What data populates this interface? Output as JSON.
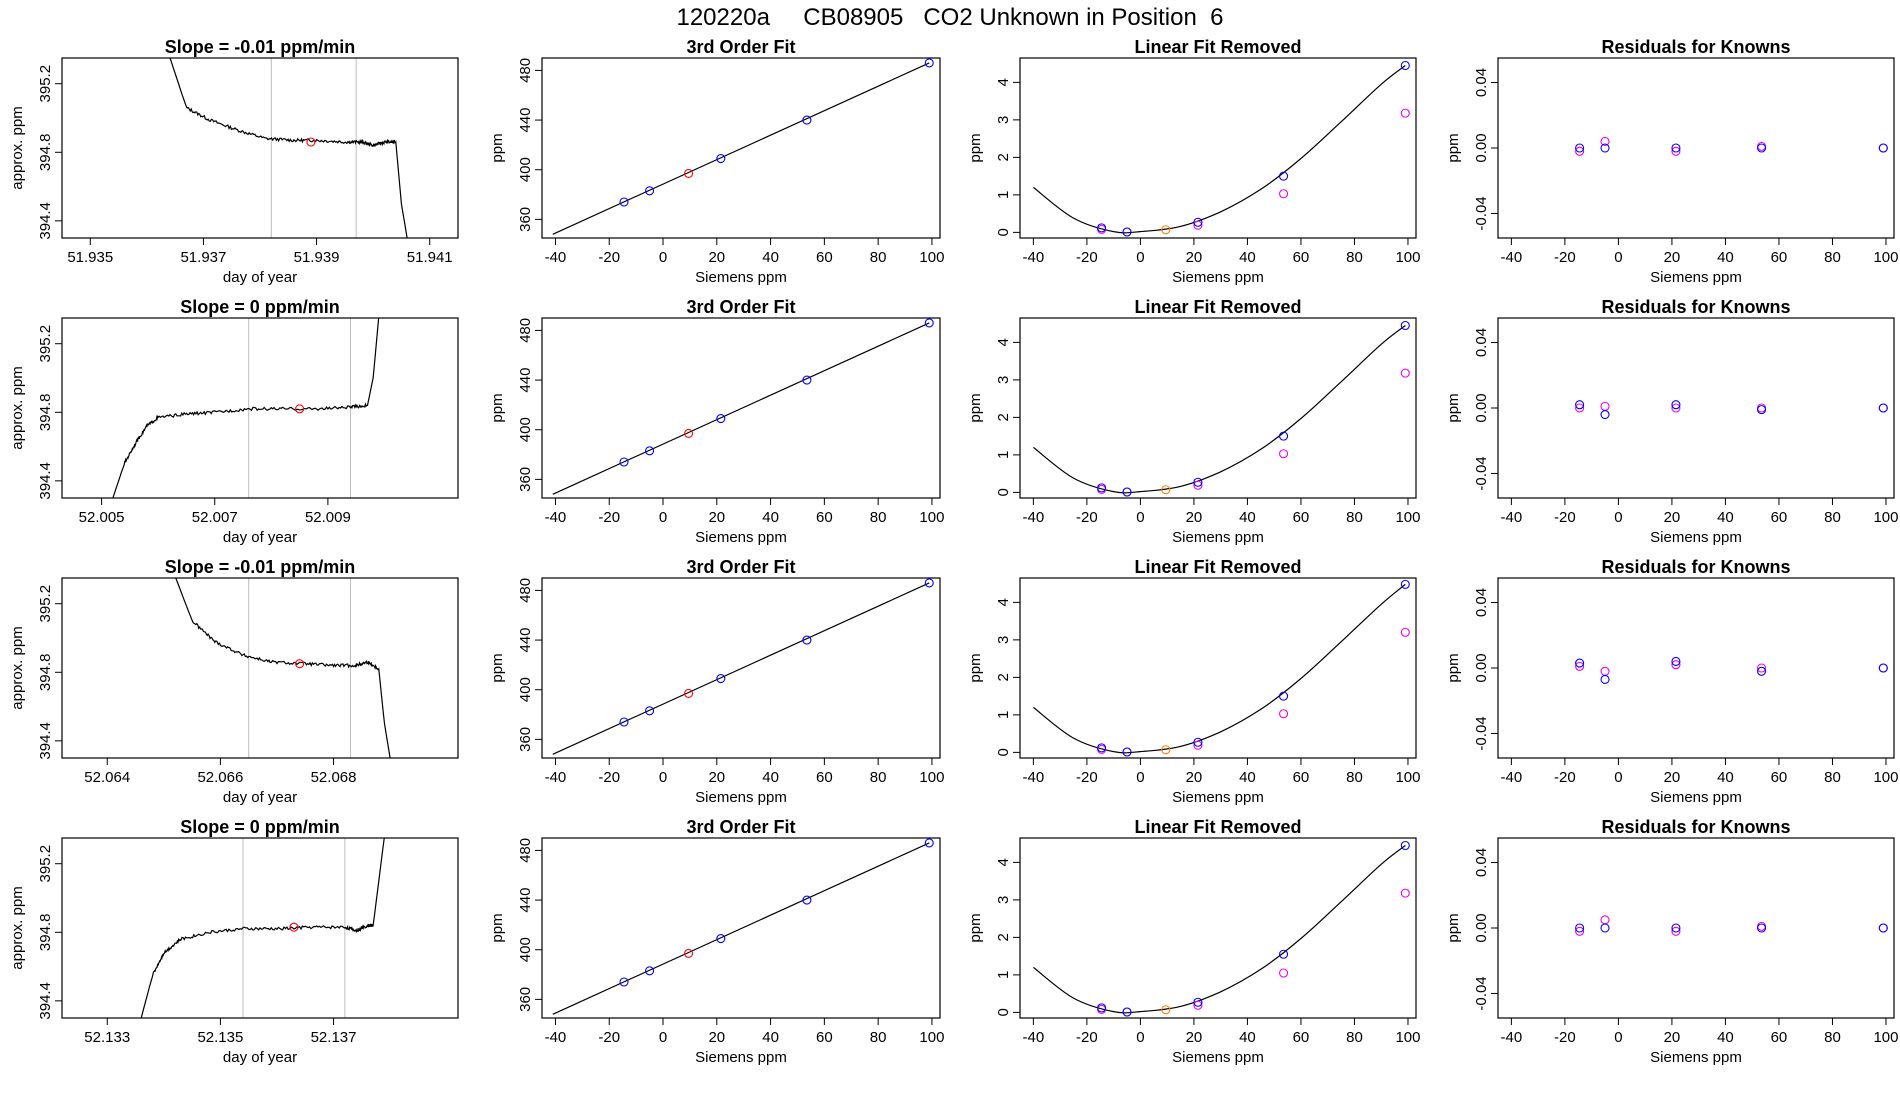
{
  "figure": {
    "title": "120220a     CB08905   CO2 Unknown in Position  6"
  },
  "colors": {
    "trace": "#000000",
    "unknown": "#ff0000",
    "known": "#0000ff",
    "unknown_resid": "#ff7f00",
    "raw_known": "#ee00ee",
    "grid": "#bebebe"
  },
  "chart_data": [
    {
      "type": "line",
      "title": "Slope =  -0.01  ppm/min",
      "xlabel": "day of year",
      "ylabel": "approx. ppm",
      "xlim": [
        51.9345,
        51.9415
      ],
      "ylim": [
        394.3,
        395.35
      ],
      "xticks": [
        "51.935",
        "51.937",
        "51.939",
        "51.941"
      ],
      "yticks": [
        "394.4",
        "394.8",
        "395.2"
      ],
      "vlines": [
        51.9382,
        51.9397
      ],
      "trace": [
        [
          51.9364,
          395.36
        ],
        [
          51.9367,
          395.06
        ],
        [
          51.9371,
          394.99
        ],
        [
          51.9376,
          394.93
        ],
        [
          51.9381,
          394.88
        ],
        [
          51.9386,
          394.87
        ],
        [
          51.939,
          394.87
        ],
        [
          51.9395,
          394.86
        ],
        [
          51.9398,
          394.86
        ],
        [
          51.94,
          394.84
        ],
        [
          51.9402,
          394.86
        ],
        [
          51.9404,
          394.86
        ],
        [
          51.9405,
          394.5
        ],
        [
          51.9406,
          394.3
        ]
      ],
      "unknown_point": [
        51.9389,
        394.86
      ]
    },
    {
      "type": "scatter",
      "title": "3rd Order Fit",
      "xlabel": "Siemens ppm",
      "ylabel": "ppm",
      "xlim": [
        -45,
        103
      ],
      "ylim": [
        345,
        490
      ],
      "xticks": [
        "-40",
        "-20",
        "0",
        "20",
        "40",
        "60",
        "80",
        "100"
      ],
      "yticks": [
        "360",
        "400",
        "440",
        "480"
      ],
      "fit_line": [
        [
          -41,
          348
        ],
        [
          99,
          486
        ]
      ],
      "knowns": [
        [
          -14.5,
          374
        ],
        [
          -5,
          383
        ],
        [
          21.5,
          409
        ],
        [
          53.5,
          440
        ],
        [
          99,
          486
        ]
      ],
      "unknown_point": [
        9.5,
        397
      ]
    },
    {
      "type": "scatter",
      "title": "Linear Fit Removed",
      "xlabel": "Siemens ppm",
      "ylabel": "ppm",
      "xlim": [
        -45,
        103
      ],
      "ylim": [
        -0.15,
        4.65
      ],
      "xticks": [
        "-40",
        "-20",
        "0",
        "20",
        "40",
        "60",
        "80",
        "100"
      ],
      "yticks": [
        "0",
        "1",
        "2",
        "3",
        "4"
      ],
      "curve_points": [
        -40,
        1.2,
        -25,
        0.38,
        -10,
        0.02,
        0,
        0.02,
        15,
        0.16,
        30,
        0.55,
        45,
        1.15,
        60,
        1.97,
        75,
        2.95,
        90,
        3.95,
        99,
        4.45
      ],
      "knowns": [
        [
          -14.5,
          0.12
        ],
        [
          -5,
          0.01
        ],
        [
          21.5,
          0.27
        ],
        [
          53.5,
          1.5
        ],
        [
          99,
          4.45
        ]
      ],
      "raw_knowns": [
        [
          -14.5,
          0.08
        ],
        [
          -5,
          0.01
        ],
        [
          21.5,
          0.19
        ],
        [
          53.5,
          1.03
        ],
        [
          99,
          3.18
        ]
      ],
      "unknown_point": [
        9.5,
        0.07
      ]
    },
    {
      "type": "scatter",
      "title": "Residuals for Knowns",
      "xlabel": "Siemens ppm",
      "ylabel": "ppm",
      "xlim": [
        -45,
        103
      ],
      "ylim": [
        -0.055,
        0.055
      ],
      "xticks": [
        "-40",
        "-20",
        "0",
        "20",
        "40",
        "60",
        "80",
        "100"
      ],
      "yticks": [
        "-0.04",
        "0.00",
        "0.04"
      ],
      "knowns": [
        [
          -14.5,
          0.0
        ],
        [
          -5,
          0.0
        ],
        [
          21.5,
          0.0
        ],
        [
          53.5,
          0.0
        ],
        [
          99,
          0.0
        ]
      ],
      "raw_knowns": [
        [
          -14.5,
          -0.002
        ],
        [
          -5,
          0.004
        ],
        [
          21.5,
          -0.002
        ],
        [
          53.5,
          0.001
        ],
        [
          99,
          0.0
        ]
      ]
    },
    {
      "type": "line",
      "title": "Slope =  0  ppm/min",
      "xlabel": "day of year",
      "ylabel": "approx. ppm",
      "xlim": [
        52.0043,
        52.0113
      ],
      "ylim": [
        394.3,
        395.35
      ],
      "xticks": [
        "52.005",
        "52.007",
        "52.009"
      ],
      "yticks": [
        "394.4",
        "394.8",
        "395.2"
      ],
      "vlines": [
        52.0076,
        52.0094
      ],
      "trace": [
        [
          52.0052,
          394.3
        ],
        [
          52.0054,
          394.5
        ],
        [
          52.0056,
          394.62
        ],
        [
          52.0058,
          394.72
        ],
        [
          52.006,
          394.77
        ],
        [
          52.0065,
          394.79
        ],
        [
          52.007,
          394.8
        ],
        [
          52.0076,
          394.82
        ],
        [
          52.0082,
          394.82
        ],
        [
          52.0088,
          394.82
        ],
        [
          52.0094,
          394.83
        ],
        [
          52.0097,
          394.84
        ],
        [
          52.0098,
          395.0
        ],
        [
          52.0099,
          395.36
        ]
      ],
      "unknown_point": [
        52.0085,
        394.82
      ]
    },
    {
      "type": "scatter",
      "title": "3rd Order Fit",
      "xlabel": "Siemens ppm",
      "ylabel": "ppm",
      "xlim": [
        -45,
        103
      ],
      "ylim": [
        345,
        490
      ],
      "xticks": [
        "-40",
        "-20",
        "0",
        "20",
        "40",
        "60",
        "80",
        "100"
      ],
      "yticks": [
        "360",
        "400",
        "440",
        "480"
      ],
      "fit_line": [
        [
          -41,
          348
        ],
        [
          99,
          486
        ]
      ],
      "knowns": [
        [
          -14.5,
          374
        ],
        [
          -5,
          383
        ],
        [
          21.5,
          409
        ],
        [
          53.5,
          440
        ],
        [
          99,
          486
        ]
      ],
      "unknown_point": [
        9.5,
        397
      ]
    },
    {
      "type": "scatter",
      "title": "Linear Fit Removed",
      "xlabel": "Siemens ppm",
      "ylabel": "ppm",
      "xlim": [
        -45,
        103
      ],
      "ylim": [
        -0.15,
        4.65
      ],
      "xticks": [
        "-40",
        "-20",
        "0",
        "20",
        "40",
        "60",
        "80",
        "100"
      ],
      "yticks": [
        "0",
        "1",
        "2",
        "3",
        "4"
      ],
      "curve_points": [
        -40,
        1.2,
        -25,
        0.38,
        -10,
        0.02,
        0,
        0.02,
        15,
        0.16,
        30,
        0.55,
        45,
        1.15,
        60,
        1.97,
        75,
        2.95,
        90,
        3.95,
        99,
        4.45
      ],
      "knowns": [
        [
          -14.5,
          0.12
        ],
        [
          -5,
          0.01
        ],
        [
          21.5,
          0.27
        ],
        [
          53.5,
          1.5
        ],
        [
          99,
          4.45
        ]
      ],
      "raw_knowns": [
        [
          -14.5,
          0.08
        ],
        [
          -5,
          0.01
        ],
        [
          21.5,
          0.19
        ],
        [
          53.5,
          1.03
        ],
        [
          99,
          3.18
        ]
      ],
      "unknown_point": [
        9.5,
        0.07
      ]
    },
    {
      "type": "scatter",
      "title": "Residuals for Knowns",
      "xlabel": "Siemens ppm",
      "ylabel": "ppm",
      "xlim": [
        -45,
        103
      ],
      "ylim": [
        -0.055,
        0.055
      ],
      "xticks": [
        "-40",
        "-20",
        "0",
        "20",
        "40",
        "60",
        "80",
        "100"
      ],
      "yticks": [
        "-0.04",
        "0.00",
        "0.04"
      ],
      "knowns": [
        [
          -14.5,
          0.002
        ],
        [
          -5,
          -0.004
        ],
        [
          21.5,
          0.002
        ],
        [
          53.5,
          -0.001
        ],
        [
          99,
          0.0
        ]
      ],
      "raw_knowns": [
        [
          -14.5,
          0.0
        ],
        [
          -5,
          0.001
        ],
        [
          21.5,
          0.0
        ],
        [
          53.5,
          0.0
        ],
        [
          99,
          0.0
        ]
      ]
    },
    {
      "type": "line",
      "title": "Slope =  -0.01  ppm/min",
      "xlabel": "day of year",
      "ylabel": "approx. ppm",
      "xlim": [
        52.0632,
        52.0702
      ],
      "ylim": [
        394.3,
        395.35
      ],
      "xticks": [
        "52.064",
        "52.066",
        "52.068"
      ],
      "yticks": [
        "394.4",
        "394.8",
        "395.2"
      ],
      "vlines": [
        52.0665,
        52.0683
      ],
      "trace": [
        [
          52.0652,
          395.36
        ],
        [
          52.0655,
          395.1
        ],
        [
          52.0659,
          394.98
        ],
        [
          52.0664,
          394.9
        ],
        [
          52.0669,
          394.86
        ],
        [
          52.0675,
          394.85
        ],
        [
          52.068,
          394.84
        ],
        [
          52.0684,
          394.84
        ],
        [
          52.0686,
          394.86
        ],
        [
          52.0688,
          394.82
        ],
        [
          52.0689,
          394.5
        ],
        [
          52.069,
          394.3
        ]
      ],
      "unknown_point": [
        52.0674,
        394.85
      ]
    },
    {
      "type": "scatter",
      "title": "3rd Order Fit",
      "xlabel": "Siemens ppm",
      "ylabel": "ppm",
      "xlim": [
        -45,
        103
      ],
      "ylim": [
        345,
        490
      ],
      "xticks": [
        "-40",
        "-20",
        "0",
        "20",
        "40",
        "60",
        "80",
        "100"
      ],
      "yticks": [
        "360",
        "400",
        "440",
        "480"
      ],
      "fit_line": [
        [
          -41,
          348
        ],
        [
          99,
          486
        ]
      ],
      "knowns": [
        [
          -14.5,
          374
        ],
        [
          -5,
          383
        ],
        [
          21.5,
          409
        ],
        [
          53.5,
          440
        ],
        [
          99,
          486
        ]
      ],
      "unknown_point": [
        9.5,
        397
      ]
    },
    {
      "type": "scatter",
      "title": "Linear Fit Removed",
      "xlabel": "Siemens ppm",
      "ylabel": "ppm",
      "xlim": [
        -45,
        103
      ],
      "ylim": [
        -0.15,
        4.65
      ],
      "xticks": [
        "-40",
        "-20",
        "0",
        "20",
        "40",
        "60",
        "80",
        "100"
      ],
      "yticks": [
        "0",
        "1",
        "2",
        "3",
        "4"
      ],
      "curve_points": [
        -40,
        1.2,
        -25,
        0.38,
        -10,
        0.02,
        0,
        0.02,
        15,
        0.16,
        30,
        0.55,
        45,
        1.15,
        60,
        1.97,
        75,
        2.95,
        90,
        3.95,
        99,
        4.48
      ],
      "knowns": [
        [
          -14.5,
          0.12
        ],
        [
          -5,
          0.01
        ],
        [
          21.5,
          0.27
        ],
        [
          53.5,
          1.5
        ],
        [
          99,
          4.48
        ]
      ],
      "raw_knowns": [
        [
          -14.5,
          0.08
        ],
        [
          -5,
          0.01
        ],
        [
          21.5,
          0.19
        ],
        [
          53.5,
          1.03
        ],
        [
          99,
          3.2
        ]
      ],
      "unknown_point": [
        9.5,
        0.07
      ]
    },
    {
      "type": "scatter",
      "title": "Residuals for Knowns",
      "xlabel": "Siemens ppm",
      "ylabel": "ppm",
      "xlim": [
        -45,
        103
      ],
      "ylim": [
        -0.055,
        0.055
      ],
      "xticks": [
        "-40",
        "-20",
        "0",
        "20",
        "40",
        "60",
        "80",
        "100"
      ],
      "yticks": [
        "-0.04",
        "0.00",
        "0.04"
      ],
      "knowns": [
        [
          -14.5,
          0.003
        ],
        [
          -5,
          -0.007
        ],
        [
          21.5,
          0.004
        ],
        [
          53.5,
          -0.002
        ],
        [
          99,
          0.0
        ]
      ],
      "raw_knowns": [
        [
          -14.5,
          0.001
        ],
        [
          -5,
          -0.002
        ],
        [
          21.5,
          0.002
        ],
        [
          53.5,
          0.0
        ],
        [
          99,
          0.0
        ]
      ]
    },
    {
      "type": "line",
      "title": "Slope =  0  ppm/min",
      "xlabel": "day of year",
      "ylabel": "approx. ppm",
      "xlim": [
        52.1322,
        52.1392
      ],
      "ylim": [
        394.3,
        395.35
      ],
      "xticks": [
        "52.133",
        "52.135",
        "52.137"
      ],
      "yticks": [
        "394.4",
        "394.8",
        "395.2"
      ],
      "vlines": [
        52.1354,
        52.1372
      ],
      "trace": [
        [
          52.1336,
          394.3
        ],
        [
          52.1338,
          394.55
        ],
        [
          52.134,
          394.68
        ],
        [
          52.1343,
          394.76
        ],
        [
          52.1348,
          394.8
        ],
        [
          52.1354,
          394.82
        ],
        [
          52.136,
          394.82
        ],
        [
          52.1366,
          394.83
        ],
        [
          52.1372,
          394.83
        ],
        [
          52.1374,
          394.81
        ],
        [
          52.1376,
          394.84
        ],
        [
          52.1377,
          394.84
        ],
        [
          52.1378,
          395.1
        ],
        [
          52.1379,
          395.36
        ]
      ],
      "unknown_point": [
        52.1363,
        394.83
      ]
    },
    {
      "type": "scatter",
      "title": "3rd Order Fit",
      "xlabel": "Siemens ppm",
      "ylabel": "ppm",
      "xlim": [
        -45,
        103
      ],
      "ylim": [
        345,
        490
      ],
      "xticks": [
        "-40",
        "-20",
        "0",
        "20",
        "40",
        "60",
        "80",
        "100"
      ],
      "yticks": [
        "360",
        "400",
        "440",
        "480"
      ],
      "fit_line": [
        [
          -41,
          348
        ],
        [
          99,
          486
        ]
      ],
      "knowns": [
        [
          -14.5,
          374
        ],
        [
          -5,
          383
        ],
        [
          21.5,
          409
        ],
        [
          53.5,
          440
        ],
        [
          99,
          486
        ]
      ],
      "unknown_point": [
        9.5,
        397
      ]
    },
    {
      "type": "scatter",
      "title": "Linear Fit Removed",
      "xlabel": "Siemens ppm",
      "ylabel": "ppm",
      "xlim": [
        -45,
        103
      ],
      "ylim": [
        -0.15,
        4.65
      ],
      "xticks": [
        "-40",
        "-20",
        "0",
        "20",
        "40",
        "60",
        "80",
        "100"
      ],
      "yticks": [
        "0",
        "1",
        "2",
        "3",
        "4"
      ],
      "curve_points": [
        -40,
        1.2,
        -25,
        0.38,
        -10,
        0.02,
        0,
        0.02,
        15,
        0.16,
        30,
        0.55,
        45,
        1.15,
        60,
        1.97,
        75,
        2.95,
        90,
        3.95,
        99,
        4.45
      ],
      "knowns": [
        [
          -14.5,
          0.12
        ],
        [
          -5,
          0.01
        ],
        [
          21.5,
          0.27
        ],
        [
          53.5,
          1.55
        ],
        [
          99,
          4.45
        ]
      ],
      "raw_knowns": [
        [
          -14.5,
          0.08
        ],
        [
          -5,
          0.01
        ],
        [
          21.5,
          0.19
        ],
        [
          53.5,
          1.05
        ],
        [
          99,
          3.18
        ]
      ],
      "unknown_point": [
        9.5,
        0.07
      ]
    },
    {
      "type": "scatter",
      "title": "Residuals for Knowns",
      "xlabel": "Siemens ppm",
      "ylabel": "ppm",
      "xlim": [
        -45,
        103
      ],
      "ylim": [
        -0.055,
        0.055
      ],
      "xticks": [
        "-40",
        "-20",
        "0",
        "20",
        "40",
        "60",
        "80",
        "100"
      ],
      "yticks": [
        "-0.04",
        "0.00",
        "0.04"
      ],
      "knowns": [
        [
          -14.5,
          0.0
        ],
        [
          -5,
          0.0
        ],
        [
          21.5,
          0.0
        ],
        [
          53.5,
          0.0
        ],
        [
          99,
          0.0
        ]
      ],
      "raw_knowns": [
        [
          -14.5,
          -0.002
        ],
        [
          -5,
          0.005
        ],
        [
          21.5,
          -0.002
        ],
        [
          53.5,
          0.001
        ],
        [
          99,
          0.0
        ]
      ]
    }
  ]
}
